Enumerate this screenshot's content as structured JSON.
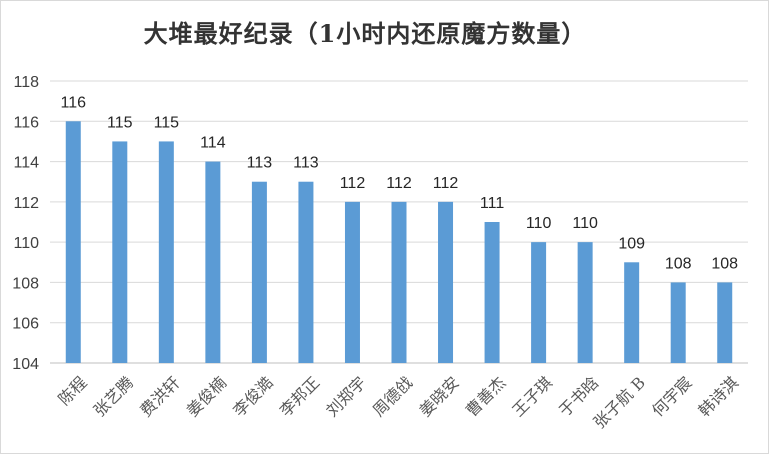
{
  "chart_data": {
    "type": "bar",
    "title": "大堆最好纪录（1小时内还原魔方数量）",
    "xlabel": "",
    "ylabel": "",
    "categories": [
      "陈程",
      "张艺腾",
      "费洪轩",
      "姜俊楠",
      "李俊澔",
      "李邦正",
      "刘郑宇",
      "周德戗",
      "姜晓安",
      "曹善杰",
      "王子琪",
      "于书晗",
      "张子航 B",
      "何宇宸",
      "韩诗淇"
    ],
    "values": [
      116,
      115,
      115,
      114,
      113,
      113,
      112,
      112,
      112,
      111,
      110,
      110,
      109,
      108,
      108
    ],
    "data_labels": [
      "116",
      "115",
      "115",
      "114",
      "113",
      "113",
      "112",
      "112",
      "112",
      "111",
      "110",
      "110",
      "109",
      "108",
      "108"
    ],
    "ylim": [
      104,
      118
    ],
    "yticks": [
      104,
      106,
      108,
      110,
      112,
      114,
      116,
      118
    ],
    "ytick_labels": [
      "104",
      "106",
      "108",
      "110",
      "112",
      "114",
      "116",
      "118"
    ],
    "grid": true,
    "legend": "none",
    "colors": {
      "bar": "#5b9bd5",
      "grid": "#d9d9d9",
      "axis": "#bfbfbf"
    }
  }
}
